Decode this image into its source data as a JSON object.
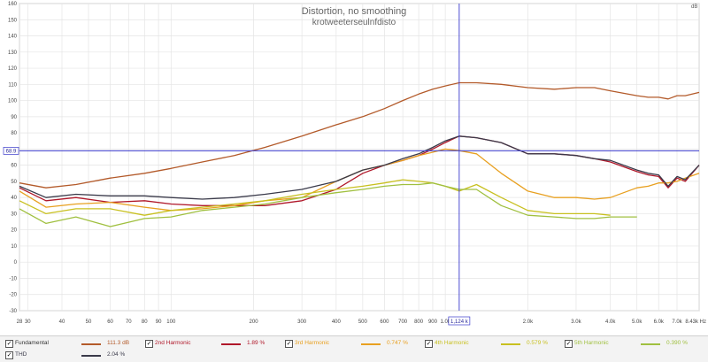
{
  "chart_data": {
    "type": "line",
    "title": "Distortion, no smoothing",
    "subtitle": "krotweeterseulnfdisto",
    "ylabel": "dB",
    "xlabel": "Hz",
    "xscale": "log",
    "xlim": [
      28,
      8430
    ],
    "ylim": [
      -30,
      160
    ],
    "grid": true,
    "x_ticks": [
      "28",
      "30",
      "40",
      "50",
      "60",
      "70",
      "80",
      "90",
      "100",
      "200",
      "300",
      "400",
      "500",
      "600",
      "700",
      "800",
      "900",
      "1.0k",
      "2.0k",
      "3.0k",
      "4.0k",
      "5.0k",
      "6.0k",
      "7.0k",
      "8.43k Hz"
    ],
    "y_ticks": [
      "160",
      "150",
      "140",
      "130",
      "120",
      "110",
      "100",
      "90",
      "80",
      "70",
      "60",
      "50",
      "40",
      "30",
      "20",
      "10",
      "0",
      "-10",
      "-20",
      "-30"
    ],
    "cursor": {
      "x": 1124,
      "y": 68.9,
      "x_label": "1,124 k",
      "y_label": "68.9"
    },
    "x": [
      28,
      35,
      45,
      60,
      80,
      100,
      130,
      170,
      220,
      300,
      400,
      500,
      600,
      700,
      800,
      900,
      1000,
      1124,
      1300,
      1600,
      2000,
      2500,
      3000,
      3500,
      4000,
      5000,
      5500,
      6000,
      6500,
      7000,
      7500,
      8430
    ],
    "series": [
      {
        "name": "Fundamental",
        "color": "#b35a2a",
        "values": [
          49,
          46,
          48,
          52,
          55,
          58,
          62,
          66,
          71,
          78,
          85,
          90,
          95,
          100,
          104,
          107,
          109,
          111,
          111,
          110,
          108,
          107,
          108,
          108,
          106,
          103,
          102,
          102,
          101,
          103,
          103,
          105
        ]
      },
      {
        "name": "2nd Harmonic",
        "color": "#b0182a",
        "values": [
          46,
          38,
          40,
          37,
          38,
          36,
          35,
          35,
          35,
          38,
          45,
          55,
          60,
          63,
          66,
          70,
          74,
          78,
          77,
          74,
          67,
          67,
          66,
          64,
          62,
          56,
          54,
          53,
          46,
          52,
          50,
          60
        ]
      },
      {
        "name": "3rd Harmonic",
        "color": "#e8a020",
        "values": [
          44,
          34,
          36,
          37,
          34,
          32,
          33,
          35,
          38,
          40,
          50,
          57,
          60,
          63,
          66,
          68,
          70,
          69,
          67,
          55,
          44,
          40,
          40,
          39,
          40,
          46,
          47,
          49,
          49,
          50,
          52,
          55
        ]
      },
      {
        "name": "4th Harmonic",
        "color": "#c8c020",
        "values": [
          38,
          30,
          33,
          33,
          29,
          32,
          34,
          36,
          38,
          42,
          45,
          47,
          49,
          51,
          50,
          49,
          47,
          44,
          48,
          40,
          32,
          30,
          30,
          30,
          29,
          null,
          null,
          null,
          null,
          null,
          null,
          null
        ]
      },
      {
        "name": "5th Harmonic",
        "color": "#a0c040",
        "values": [
          33,
          24,
          28,
          22,
          27,
          28,
          32,
          34,
          36,
          40,
          43,
          45,
          47,
          48,
          48,
          49,
          47,
          45,
          45,
          35,
          29,
          28,
          27,
          27,
          28,
          28,
          null,
          null,
          null,
          null,
          null,
          null
        ]
      },
      {
        "name": "THD",
        "color": "#3a3a4a",
        "values": [
          47,
          40,
          42,
          41,
          41,
          40,
          39,
          40,
          42,
          45,
          50,
          57,
          60,
          64,
          67,
          71,
          75,
          78,
          77,
          74,
          67,
          67,
          66,
          64,
          63,
          57,
          55,
          54,
          47,
          53,
          51,
          60
        ]
      }
    ]
  },
  "legend": [
    {
      "label": "Fundamental",
      "value": "111.3 dB",
      "color": "#b35a2a"
    },
    {
      "label": "2nd Harmonic",
      "value": "1.89 %",
      "color": "#b0182a"
    },
    {
      "label": "3rd Harmonic",
      "value": "0.747 %",
      "color": "#e8a020"
    },
    {
      "label": "4th Harmonic",
      "value": "0.579 %",
      "color": "#c8c020"
    },
    {
      "label": "5th Harmonic",
      "value": "0.390 %",
      "color": "#a0c040"
    },
    {
      "label": "THD",
      "value": "2.04 %",
      "color": "#3a3a4a"
    }
  ],
  "checkbox_mark": "✓"
}
